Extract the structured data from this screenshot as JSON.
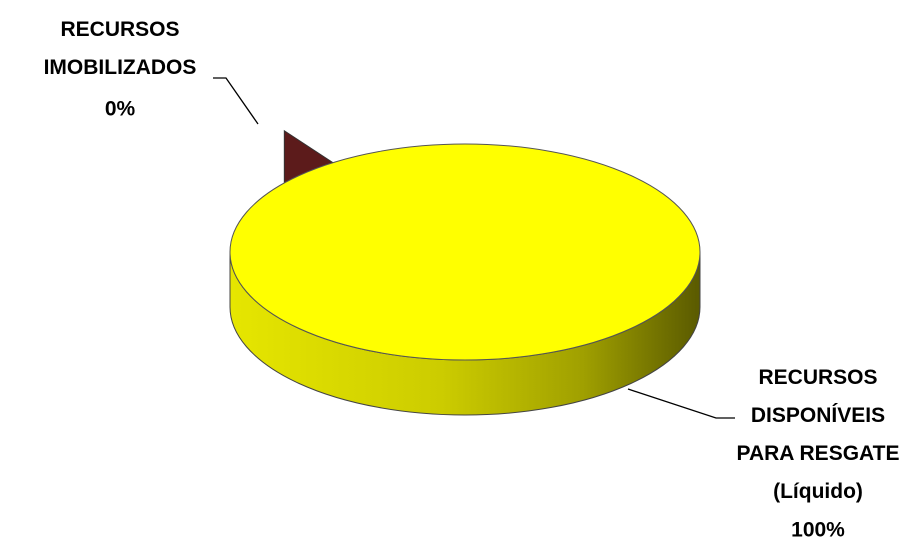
{
  "chart_data": {
    "type": "pie",
    "categories": [
      "RECURSOS\nIMOBILIZADOS",
      "RECURSOS\nDISPONÍVEIS\nPARA RESGATE\n(Líquido)"
    ],
    "values": [
      0,
      100
    ],
    "value_labels": [
      "0%",
      "100%"
    ],
    "colors": [
      "#5c1b1b",
      "#ffff00"
    ]
  }
}
